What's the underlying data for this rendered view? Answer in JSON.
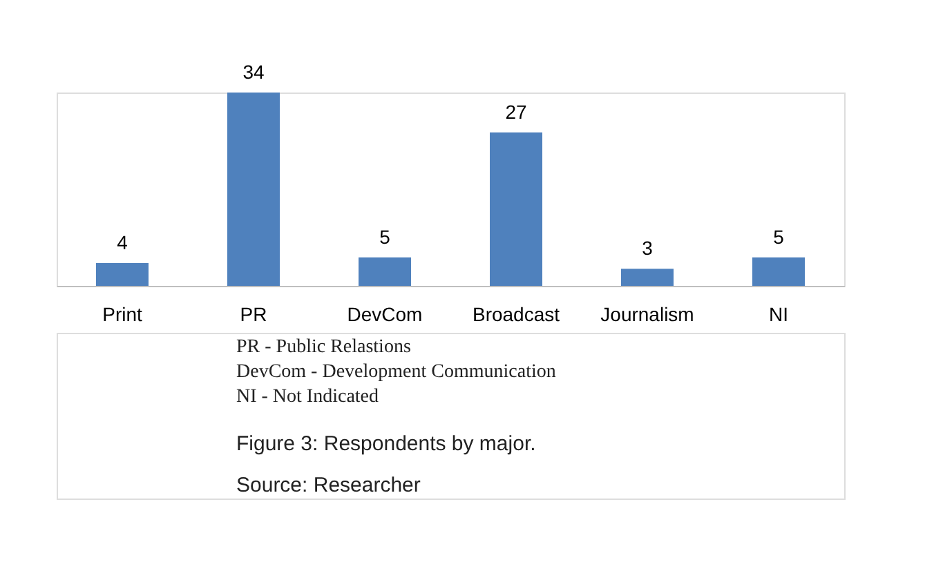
{
  "chart_data": {
    "type": "bar",
    "categories": [
      "Print",
      "PR",
      "DevCom",
      "Broadcast",
      "Journalism",
      "NI"
    ],
    "values": [
      4,
      34,
      5,
      27,
      3,
      5
    ],
    "color": "#4f81bd",
    "data_labels": true,
    "annotations": [
      "PR                    - Public Relastions",
      "DevCom            - Development Communication",
      "NI                     - Not Indicated",
      "Figure 3: Respondents by major.",
      "Source: Researcher"
    ]
  }
}
